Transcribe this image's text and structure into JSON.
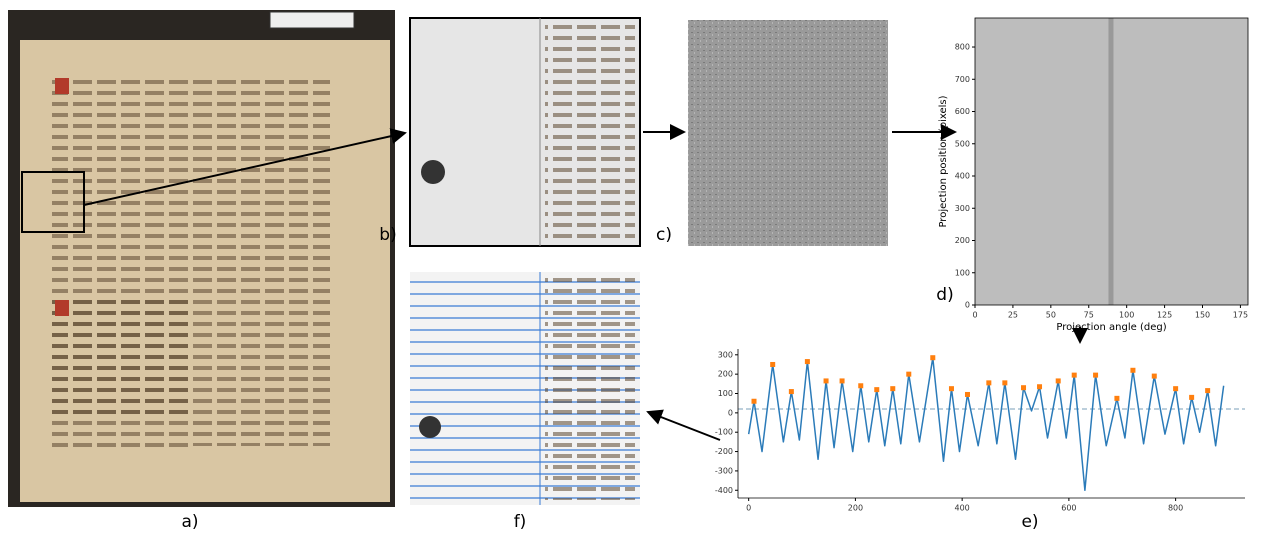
{
  "panel_labels": [
    "a)",
    "b)",
    "c)",
    "d)",
    "e)",
    "f)"
  ],
  "chart_data": [
    {
      "type": "image",
      "xlabel": "Projection angle (deg)",
      "ylabel": "Projection position (pixels)",
      "xlim": [
        0,
        180
      ],
      "xticks": [
        0,
        25,
        50,
        75,
        100,
        125,
        150,
        175
      ],
      "ylim": [
        0,
        890
      ],
      "yticks": [
        0,
        100,
        200,
        300,
        400,
        500,
        600,
        700,
        800
      ]
    },
    {
      "type": "line",
      "xlim": [
        -20,
        930
      ],
      "xticks": [
        0,
        200,
        400,
        600,
        800
      ],
      "ylim": [
        -440,
        330
      ],
      "yticks": [
        -400,
        -300,
        -200,
        -100,
        0,
        100,
        200,
        300
      ],
      "hline": 20,
      "series": [
        {
          "color": "#2b7bb9",
          "kind": "line",
          "x": [
            0,
            10,
            25,
            45,
            65,
            80,
            95,
            110,
            130,
            145,
            160,
            175,
            195,
            210,
            225,
            240,
            255,
            270,
            285,
            300,
            320,
            345,
            365,
            380,
            395,
            410,
            430,
            450,
            465,
            480,
            500,
            515,
            530,
            545,
            560,
            580,
            595,
            610,
            630,
            650,
            670,
            690,
            705,
            720,
            740,
            760,
            780,
            800,
            815,
            830,
            845,
            860,
            875,
            890
          ],
          "values": [
            -110,
            60,
            -200,
            250,
            -150,
            110,
            -140,
            265,
            -240,
            165,
            -180,
            165,
            -200,
            140,
            -150,
            120,
            -170,
            125,
            -160,
            200,
            -150,
            285,
            -250,
            125,
            -200,
            95,
            -170,
            155,
            -160,
            155,
            -240,
            130,
            10,
            135,
            -130,
            165,
            -130,
            195,
            -400,
            195,
            -170,
            75,
            -130,
            220,
            -160,
            190,
            -110,
            125,
            -160,
            80,
            -100,
            115,
            -170,
            140
          ]
        },
        {
          "color": "#ff7f0e",
          "kind": "points",
          "x": [
            10,
            45,
            80,
            110,
            145,
            175,
            210,
            240,
            270,
            300,
            345,
            380,
            410,
            450,
            480,
            515,
            545,
            580,
            610,
            650,
            690,
            720,
            760,
            800,
            830,
            860
          ],
          "values": [
            60,
            250,
            110,
            265,
            165,
            165,
            140,
            120,
            125,
            200,
            285,
            125,
            95,
            155,
            155,
            130,
            135,
            165,
            195,
            195,
            75,
            220,
            190,
            125,
            80,
            115
          ]
        }
      ]
    }
  ]
}
